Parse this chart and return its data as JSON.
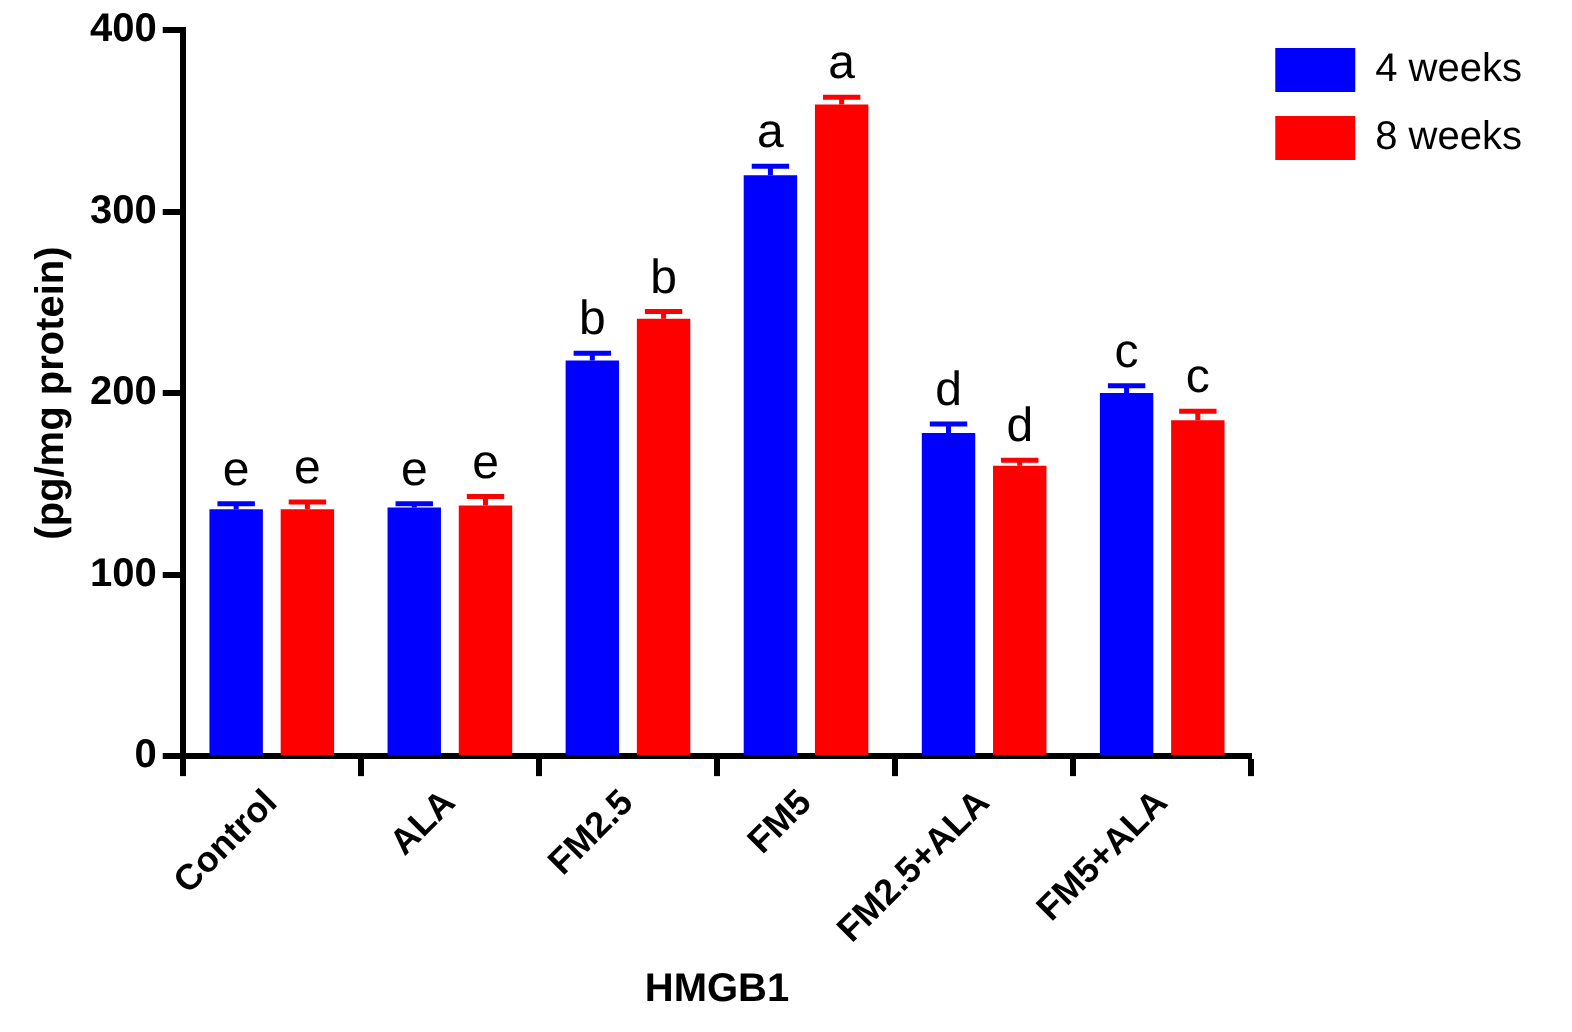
{
  "chart_data": {
    "type": "bar",
    "xlabel": "HMGB1",
    "ylabel": "(pg/mg protein)",
    "categories": [
      "Control",
      "ALA",
      "FM2.5",
      "FM5",
      "FM2.5+ALA",
      "FM5+ALA"
    ],
    "series": [
      {
        "name": "4 weeks",
        "color": "#0000ff",
        "values": [
          136,
          137,
          218,
          320,
          178,
          200
        ],
        "errors": [
          [
            136,
            139
          ],
          [
            137,
            139
          ],
          [
            218,
            222
          ],
          [
            320,
            325
          ],
          [
            178,
            183
          ],
          [
            200,
            204
          ]
        ],
        "value_labels": [
          "e",
          "e",
          "b",
          "a",
          "d",
          "c"
        ]
      },
      {
        "name": "8 weeks",
        "color": "#ff0000",
        "values": [
          136,
          138,
          241,
          359,
          160,
          185
        ],
        "errors": [
          [
            136,
            140
          ],
          [
            138,
            143
          ],
          [
            241,
            245
          ],
          [
            359,
            363
          ],
          [
            160,
            163
          ],
          [
            185,
            190
          ]
        ],
        "value_labels": [
          "e",
          "e",
          "b",
          "a",
          "d",
          "c"
        ]
      }
    ],
    "ylim": [
      0,
      400
    ],
    "yticks": [
      0,
      100,
      200,
      300,
      400
    ],
    "grid": false,
    "legend": "top right"
  }
}
